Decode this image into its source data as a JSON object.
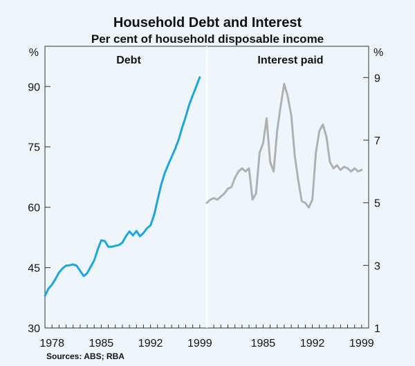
{
  "chart_data": {
    "title": "Household Debt and Interest",
    "subtitle": "Per cent of household disposable income",
    "source": "Sources: ABS; RBA",
    "y_left": {
      "unit": "%",
      "min": 30,
      "max": 100,
      "ticks": [
        "30",
        "45",
        "60",
        "75",
        "90"
      ],
      "tick_values": [
        30,
        45,
        60,
        75,
        90
      ]
    },
    "y_right": {
      "unit": "%",
      "min": 1,
      "max": 10,
      "ticks": [
        "1",
        "3",
        "5",
        "7",
        "9"
      ],
      "tick_values": [
        1,
        3,
        5,
        7,
        9
      ]
    },
    "grid": false,
    "panels": [
      {
        "type": "line",
        "title": "Debt",
        "x_range": [
          1977,
          2000
        ],
        "x_ticks": [
          "1978",
          "1985",
          "1992",
          "1999"
        ],
        "x_tick_values": [
          1978,
          1985,
          1992,
          1999
        ],
        "axis": "left",
        "color": "#1ba6df",
        "series": [
          {
            "x": [
              1977.0,
              1977.5,
              1978.0,
              1978.5,
              1979.0,
              1979.5,
              1980.0,
              1980.5,
              1981.0,
              1981.5,
              1982.0,
              1982.5,
              1983.0,
              1983.5,
              1984.0,
              1984.5,
              1985.0,
              1985.5,
              1986.0,
              1986.5,
              1987.0,
              1987.5,
              1988.0,
              1988.5,
              1989.0,
              1989.5,
              1990.0,
              1990.5,
              1991.0,
              1991.5,
              1992.0,
              1992.5,
              1993.0,
              1993.5,
              1994.0,
              1994.5,
              1995.0,
              1995.5,
              1996.0,
              1996.5,
              1997.0,
              1997.5,
              1998.0,
              1998.5,
              1999.0
            ],
            "y": [
              38.0,
              39.8,
              40.8,
              42.2,
              43.8,
              44.8,
              45.5,
              45.6,
              45.8,
              45.5,
              44.2,
              42.9,
              43.6,
              45.2,
              46.8,
              49.5,
              51.8,
              51.6,
              50.2,
              50.2,
              50.4,
              50.6,
              51.2,
              52.8,
              54.0,
              53.0,
              54.1,
              52.8,
              53.6,
              54.8,
              55.5,
              58.0,
              61.8,
              65.5,
              68.4,
              70.5,
              72.5,
              74.5,
              76.8,
              79.8,
              82.5,
              85.5,
              87.8,
              90.0,
              92.3
            ]
          }
        ]
      },
      {
        "type": "line",
        "title": "Interest paid",
        "x_range": [
          1977,
          2000
        ],
        "x_ticks": [
          "1985",
          "1992",
          "1999"
        ],
        "x_tick_values": [
          1985,
          1992,
          1999
        ],
        "axis": "right",
        "color": "#b0b0b0",
        "series": [
          {
            "x": [
              1977.0,
              1977.5,
              1978.0,
              1978.5,
              1979.0,
              1979.5,
              1980.0,
              1980.5,
              1981.0,
              1981.5,
              1982.0,
              1982.5,
              1983.0,
              1983.5,
              1984.0,
              1984.5,
              1985.0,
              1985.5,
              1986.0,
              1986.5,
              1987.0,
              1987.5,
              1988.0,
              1988.25,
              1988.5,
              1988.75,
              1989.0,
              1989.5,
              1990.0,
              1990.5,
              1991.0,
              1991.5,
              1992.0,
              1992.5,
              1993.0,
              1993.5,
              1994.0,
              1994.5,
              1995.0,
              1995.5,
              1996.0,
              1996.5,
              1997.0,
              1997.5,
              1998.0,
              1998.5,
              1999.0
            ],
            "y": [
              5.0,
              5.1,
              5.15,
              5.1,
              5.2,
              5.3,
              5.45,
              5.5,
              5.8,
              6.0,
              6.1,
              6.0,
              6.1,
              5.1,
              5.3,
              6.6,
              6.9,
              7.7,
              6.3,
              6.0,
              7.3,
              8.1,
              8.8,
              8.6,
              8.4,
              8.1,
              7.8,
              6.5,
              5.7,
              5.05,
              5.0,
              4.85,
              5.1,
              6.6,
              7.3,
              7.5,
              7.1,
              6.3,
              6.1,
              6.2,
              6.05,
              6.15,
              6.1,
              6.0,
              6.1,
              6.0,
              6.05
            ]
          }
        ]
      }
    ]
  }
}
